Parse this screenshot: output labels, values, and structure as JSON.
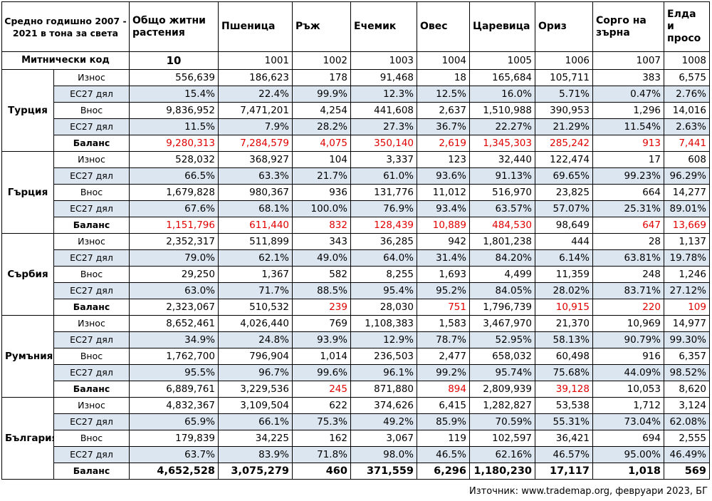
{
  "header": {
    "corner": "Средно годишно 2007 - 2021 в тона за света",
    "columns": [
      "Общо житни растения",
      "Пшеница",
      "Ръж",
      "Ечемик",
      "Овес",
      "Царевица",
      "Ориз",
      "Сорго на зърна",
      "Елда и просо"
    ]
  },
  "code_row": {
    "label": "Митнически код",
    "codes": [
      "10",
      "1001",
      "1002",
      "1003",
      "1004",
      "1005",
      "1006",
      "1007",
      "1008"
    ]
  },
  "countries": [
    {
      "name": "Турция",
      "rows": [
        {
          "label": "Износ",
          "values": [
            "556,639",
            "186,623",
            "178",
            "91,468",
            "18",
            "165,684",
            "105,711",
            "383",
            "6,575"
          ]
        },
        {
          "label": "ЕС27 дял",
          "values": [
            "15.4%",
            "22.4%",
            "99.9%",
            "12.3%",
            "12.5%",
            "16.0%",
            "5.71%",
            "0.47%",
            "2.76%"
          ]
        },
        {
          "label": "Внос",
          "values": [
            "9,836,952",
            "7,471,201",
            "4,254",
            "441,608",
            "2,637",
            "1,510,988",
            "390,953",
            "1,296",
            "14,016"
          ]
        },
        {
          "label": "ЕС27 дял",
          "values": [
            "11.5%",
            "7.9%",
            "28.2%",
            "27.3%",
            "36.7%",
            "22.27%",
            "21.29%",
            "11.54%",
            "2.63%"
          ]
        },
        {
          "label": "Баланс",
          "values": [
            "9,280,313",
            "7,284,579",
            "4,075",
            "350,140",
            "2,619",
            "1,345,303",
            "285,242",
            "913",
            "7,441"
          ],
          "negative": [
            true,
            true,
            true,
            true,
            true,
            true,
            true,
            true,
            true
          ]
        }
      ]
    },
    {
      "name": "Гърция",
      "rows": [
        {
          "label": "Износ",
          "values": [
            "528,032",
            "368,927",
            "104",
            "3,337",
            "123",
            "32,440",
            "122,474",
            "17",
            "608"
          ]
        },
        {
          "label": "ЕС27 дял",
          "values": [
            "66.5%",
            "63.3%",
            "21.7%",
            "61.0%",
            "93.6%",
            "91.13%",
            "69.65%",
            "99.23%",
            "96.29%"
          ]
        },
        {
          "label": "Внос",
          "values": [
            "1,679,828",
            "980,367",
            "936",
            "131,776",
            "11,012",
            "516,970",
            "23,825",
            "664",
            "14,277"
          ]
        },
        {
          "label": "ЕС27 дял",
          "values": [
            "67.6%",
            "68.1%",
            "100.0%",
            "76.9%",
            "93.4%",
            "63.57%",
            "57.07%",
            "25.31%",
            "89.01%"
          ]
        },
        {
          "label": "Баланс",
          "values": [
            "1,151,796",
            "611,440",
            "832",
            "128,439",
            "10,889",
            "484,530",
            "98,649",
            "647",
            "13,669"
          ],
          "negative": [
            true,
            true,
            true,
            true,
            true,
            true,
            false,
            true,
            true
          ]
        }
      ]
    },
    {
      "name": "Сърбия",
      "rows": [
        {
          "label": "Износ",
          "values": [
            "2,352,317",
            "511,899",
            "343",
            "36,285",
            "942",
            "1,801,238",
            "444",
            "28",
            "1,137"
          ]
        },
        {
          "label": "ЕС27 дял",
          "values": [
            "79.0%",
            "62.1%",
            "49.0%",
            "64.0%",
            "31.4%",
            "84.20%",
            "6.14%",
            "63.81%",
            "19.78%"
          ]
        },
        {
          "label": "Внос",
          "values": [
            "29,250",
            "1,367",
            "582",
            "8,255",
            "1,693",
            "4,499",
            "11,359",
            "248",
            "1,246"
          ]
        },
        {
          "label": "ЕС27 дял",
          "values": [
            "63.0%",
            "71.7%",
            "88.5%",
            "95.4%",
            "95.2%",
            "84.05%",
            "28.02%",
            "83.71%",
            "27.12%"
          ]
        },
        {
          "label": "Баланс",
          "values": [
            "2,323,067",
            "510,532",
            "239",
            "28,030",
            "751",
            "1,796,739",
            "10,915",
            "220",
            "109"
          ],
          "negative": [
            false,
            false,
            true,
            false,
            true,
            false,
            true,
            true,
            true
          ]
        }
      ]
    },
    {
      "name": "Румъния",
      "rows": [
        {
          "label": "Износ",
          "values": [
            "8,652,461",
            "4,026,440",
            "769",
            "1,108,383",
            "1,583",
            "3,467,970",
            "21,370",
            "10,969",
            "14,977"
          ]
        },
        {
          "label": "ЕС27 дял",
          "values": [
            "34.9%",
            "24.8%",
            "93.9%",
            "12.9%",
            "78.7%",
            "52.95%",
            "58.13%",
            "90.79%",
            "99.30%"
          ]
        },
        {
          "label": "Внос",
          "values": [
            "1,762,700",
            "796,904",
            "1,014",
            "236,503",
            "2,477",
            "658,032",
            "60,498",
            "916",
            "6,357"
          ]
        },
        {
          "label": "ЕС27 дял",
          "values": [
            "95.5%",
            "96.7%",
            "99.6%",
            "96.1%",
            "99.2%",
            "95.74%",
            "75.68%",
            "44.09%",
            "98.52%"
          ]
        },
        {
          "label": "Баланс",
          "values": [
            "6,889,761",
            "3,229,536",
            "245",
            "871,880",
            "894",
            "2,809,939",
            "39,128",
            "10,053",
            "8,620"
          ],
          "negative": [
            false,
            false,
            true,
            false,
            true,
            false,
            true,
            false,
            false
          ]
        }
      ]
    },
    {
      "name": "България",
      "rows": [
        {
          "label": "Износ",
          "values": [
            "4,832,367",
            "3,109,504",
            "622",
            "374,626",
            "6,415",
            "1,282,827",
            "53,538",
            "1,712",
            "3,124"
          ]
        },
        {
          "label": "ЕС27 дял",
          "values": [
            "65.9%",
            "66.1%",
            "75.3%",
            "49.2%",
            "85.9%",
            "70.59%",
            "55.31%",
            "73.04%",
            "62.08%"
          ]
        },
        {
          "label": "Внос",
          "values": [
            "179,839",
            "34,225",
            "162",
            "3,067",
            "119",
            "102,597",
            "36,421",
            "694",
            "2,555"
          ]
        },
        {
          "label": "ЕС27 дял",
          "values": [
            "63.7%",
            "83.9%",
            "71.8%",
            "98.0%",
            "46.5%",
            "62.16%",
            "46.57%",
            "95.00%",
            "46.49%"
          ]
        },
        {
          "label": "Баланс",
          "values": [
            "4,652,528",
            "3,075,279",
            "460",
            "371,559",
            "6,296",
            "1,180,230",
            "17,117",
            "1,018",
            "569"
          ]
        }
      ]
    }
  ],
  "source": "Източник: www.trademap.org, февруари 2023, БГ",
  "colors": {
    "share_row_bg": "#dce6f1",
    "negative_text": "#e00000"
  }
}
